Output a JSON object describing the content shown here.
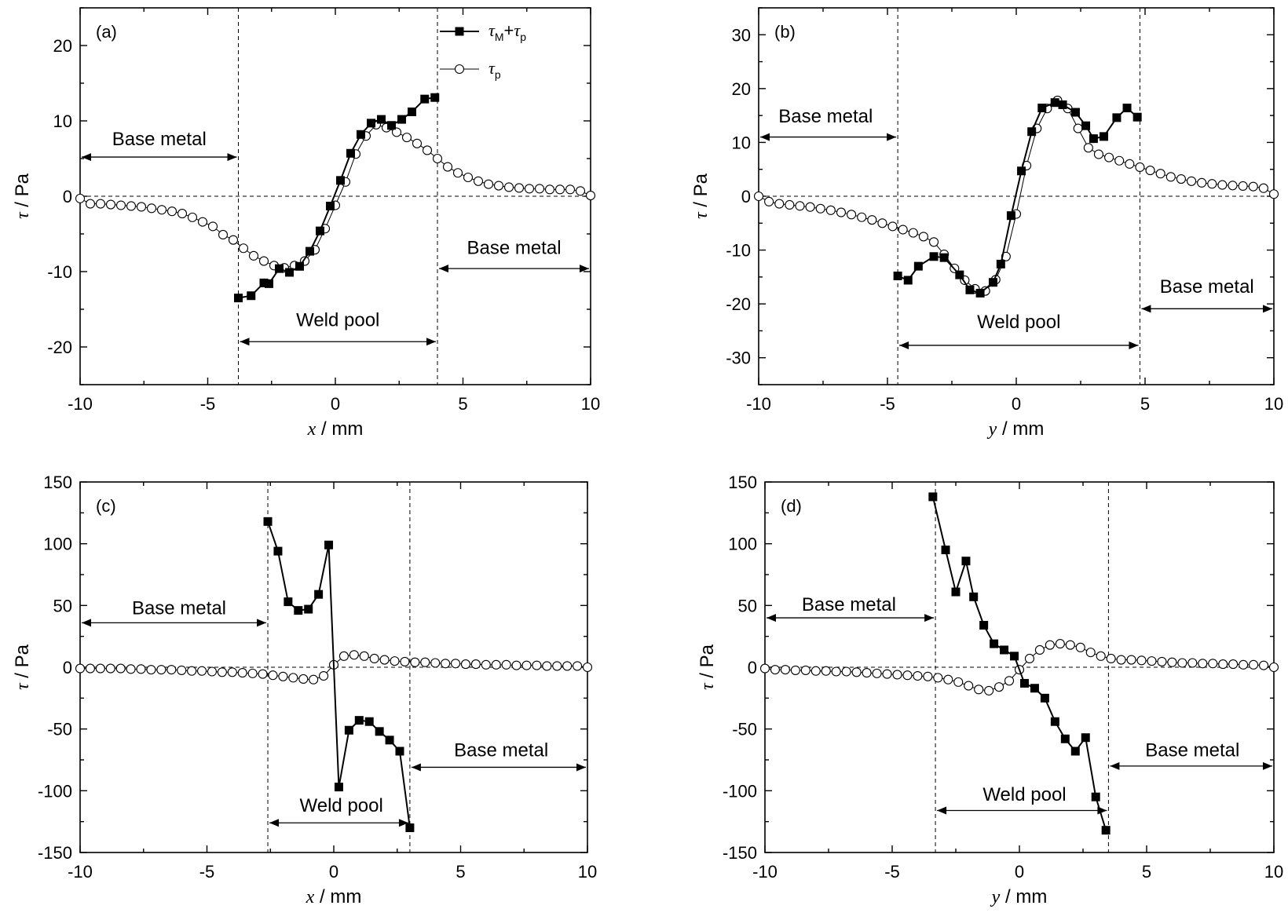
{
  "chart_data": [
    {
      "panel": "(a)",
      "type": "line",
      "xlabel_var": "x",
      "xlabel_unit": " / mm",
      "ylabel_var": "τ",
      "ylabel_unit": " / Pa",
      "xlim": [
        -10,
        10
      ],
      "ylim": [
        -25,
        25
      ],
      "xticks": [
        -10,
        -5,
        0,
        5,
        10
      ],
      "yticks": [
        -20,
        -10,
        0,
        10,
        20
      ],
      "boundaries": [
        -3.8,
        4.0
      ],
      "legend": {
        "total": {
          "a": "τ",
          "a_sub": "M",
          "plus": "+",
          "b": "τ",
          "b_sub": "p"
        },
        "p": {
          "a": "τ",
          "a_sub": "p"
        }
      },
      "annotations": [
        {
          "text": "Base metal",
          "arrow": [
            -10,
            -3.8
          ],
          "y": 5.2,
          "ty": 7.6,
          "tx": -6.9
        },
        {
          "text": "Base metal",
          "arrow": [
            4.0,
            10
          ],
          "y": -9.6,
          "ty": -6.8,
          "tx": 7.0
        },
        {
          "text": "Weld pool",
          "arrow": [
            -3.8,
            4.0
          ],
          "y": -19.3,
          "ty": -16.4,
          "tx": 0.1
        }
      ],
      "series": [
        {
          "name_ref": "total",
          "marker": "square",
          "x": [
            -3.8,
            -3.3,
            -2.8,
            -2.6,
            -2.2,
            -1.8,
            -1.4,
            -1.0,
            -0.6,
            -0.2,
            0.2,
            0.6,
            1.0,
            1.4,
            1.8,
            2.2,
            2.6,
            3.0,
            3.5,
            3.9
          ],
          "y": [
            -13.5,
            -13.2,
            -11.5,
            -11.6,
            -9.6,
            -10.1,
            -9.3,
            -7.3,
            -4.6,
            -1.3,
            2.1,
            5.7,
            8.2,
            9.7,
            10.2,
            9.4,
            10.2,
            11.2,
            12.9,
            13.1
          ]
        },
        {
          "name_ref": "p",
          "marker": "circle",
          "x": [
            -10.0,
            -9.6,
            -9.2,
            -8.8,
            -8.4,
            -8.0,
            -7.6,
            -7.2,
            -6.8,
            -6.4,
            -6.0,
            -5.6,
            -5.2,
            -4.8,
            -4.4,
            -4.0,
            -3.6,
            -3.2,
            -2.8,
            -2.4,
            -2.0,
            -1.6,
            -1.2,
            -0.8,
            -0.4,
            0.0,
            0.4,
            0.8,
            1.2,
            1.6,
            2.0,
            2.4,
            2.8,
            3.2,
            3.6,
            4.0,
            4.4,
            4.8,
            5.2,
            5.6,
            6.0,
            6.4,
            6.8,
            7.2,
            7.6,
            8.0,
            8.4,
            8.8,
            9.2,
            9.6,
            10.0
          ],
          "y": [
            -0.3,
            -1.0,
            -1.0,
            -1.1,
            -1.2,
            -1.3,
            -1.4,
            -1.6,
            -1.8,
            -2.0,
            -2.3,
            -2.8,
            -3.4,
            -4.0,
            -5.1,
            -5.8,
            -6.9,
            -7.9,
            -8.6,
            -9.2,
            -9.5,
            -9.2,
            -8.6,
            -7.1,
            -4.3,
            -1.2,
            1.9,
            5.6,
            8.0,
            9.5,
            9.1,
            8.5,
            7.8,
            7.0,
            6.1,
            5.0,
            3.9,
            3.1,
            2.5,
            2.0,
            1.6,
            1.4,
            1.2,
            1.1,
            1.0,
            1.0,
            0.9,
            0.9,
            0.9,
            0.7,
            0.1
          ]
        }
      ]
    },
    {
      "panel": "(b)",
      "type": "line",
      "xlabel_var": "y",
      "xlabel_unit": " / mm",
      "ylabel_var": "τ",
      "ylabel_unit": " / Pa",
      "xlim": [
        -10,
        10
      ],
      "ylim": [
        -35,
        35
      ],
      "xticks": [
        -10,
        -5,
        0,
        5,
        10
      ],
      "yticks": [
        -30,
        -20,
        -10,
        0,
        10,
        20,
        30
      ],
      "boundaries": [
        -4.6,
        4.8
      ],
      "annotations": [
        {
          "text": "Base metal",
          "arrow": [
            -10,
            -4.6
          ],
          "y": 11.0,
          "ty": 14.9,
          "tx": -7.4
        },
        {
          "text": "Base metal",
          "arrow": [
            4.8,
            10
          ],
          "y": -20.9,
          "ty": -16.8,
          "tx": 7.4
        },
        {
          "text": "Weld pool",
          "arrow": [
            -4.6,
            4.8
          ],
          "y": -27.7,
          "ty": -23.3,
          "tx": 0.1
        }
      ],
      "series": [
        {
          "name_ref": "total",
          "marker": "square",
          "x": [
            -4.6,
            -4.2,
            -3.8,
            -3.2,
            -2.8,
            -2.2,
            -1.8,
            -1.4,
            -0.9,
            -0.6,
            -0.2,
            0.2,
            0.6,
            1.0,
            1.5,
            1.8,
            2.3,
            2.7,
            3.0,
            3.4,
            3.9,
            4.3,
            4.7
          ],
          "y": [
            -14.8,
            -15.6,
            -13.0,
            -11.2,
            -11.4,
            -14.6,
            -17.4,
            -18.0,
            -16.0,
            -12.6,
            -3.6,
            4.7,
            12.0,
            16.4,
            17.4,
            17.0,
            15.6,
            13.1,
            10.7,
            11.1,
            14.6,
            16.4,
            14.7
          ]
        },
        {
          "name_ref": "p",
          "marker": "circle",
          "x": [
            -10.0,
            -9.6,
            -9.2,
            -8.8,
            -8.4,
            -8.0,
            -7.6,
            -7.2,
            -6.8,
            -6.4,
            -6.0,
            -5.6,
            -5.2,
            -4.8,
            -4.4,
            -4.0,
            -3.6,
            -3.2,
            -2.8,
            -2.4,
            -2.0,
            -1.6,
            -1.2,
            -0.8,
            -0.4,
            0.0,
            0.4,
            0.8,
            1.2,
            1.6,
            2.0,
            2.4,
            2.8,
            3.2,
            3.6,
            4.0,
            4.4,
            4.8,
            5.2,
            5.6,
            6.0,
            6.4,
            6.8,
            7.2,
            7.6,
            8.0,
            8.4,
            8.8,
            9.2,
            9.6,
            10.0
          ],
          "y": [
            0.0,
            -1.0,
            -1.4,
            -1.6,
            -1.8,
            -2.0,
            -2.3,
            -2.6,
            -3.0,
            -3.4,
            -3.9,
            -4.4,
            -5.0,
            -5.6,
            -6.2,
            -6.8,
            -7.5,
            -8.5,
            -10.8,
            -13.4,
            -15.6,
            -17.2,
            -17.6,
            -15.5,
            -11.2,
            -3.3,
            5.7,
            12.6,
            16.3,
            17.8,
            16.3,
            12.6,
            9.0,
            7.8,
            7.2,
            6.6,
            6.0,
            5.4,
            4.8,
            4.2,
            3.6,
            3.2,
            2.8,
            2.5,
            2.3,
            2.1,
            2.0,
            1.9,
            1.8,
            1.5,
            0.4
          ]
        }
      ]
    },
    {
      "panel": "(c)",
      "type": "line",
      "xlabel_var": "x",
      "xlabel_unit": " / mm",
      "ylabel_var": "τ",
      "ylabel_unit": " / Pa",
      "xlim": [
        -10,
        10
      ],
      "ylim": [
        -150,
        150
      ],
      "xticks": [
        -10,
        -5,
        0,
        5,
        10
      ],
      "yticks": [
        -150,
        -100,
        -50,
        0,
        50,
        100,
        150
      ],
      "boundaries": [
        -2.6,
        3.0
      ],
      "annotations": [
        {
          "text": "Base metal",
          "arrow": [
            -10,
            -2.6
          ],
          "y": 36,
          "ty": 48,
          "tx": -6.1
        },
        {
          "text": "Base metal",
          "arrow": [
            3.0,
            10
          ],
          "y": -81,
          "ty": -67,
          "tx": 6.6
        },
        {
          "text": "Weld pool",
          "arrow": [
            -2.6,
            3.0
          ],
          "y": -126,
          "ty": -112,
          "tx": 0.3
        }
      ],
      "series": [
        {
          "name_ref": "total",
          "marker": "square",
          "x": [
            -2.6,
            -2.2,
            -1.8,
            -1.4,
            -1.0,
            -0.6,
            -0.2,
            0.2,
            0.6,
            1.0,
            1.4,
            1.8,
            2.2,
            2.6,
            3.0
          ],
          "y": [
            118,
            94,
            53,
            46,
            47,
            59,
            99,
            -97,
            -51,
            -43,
            -44,
            -52,
            -59,
            -68,
            -130
          ]
        },
        {
          "name_ref": "p",
          "marker": "circle",
          "x": [
            -10.0,
            -9.6,
            -9.2,
            -8.8,
            -8.4,
            -8.0,
            -7.6,
            -7.2,
            -6.8,
            -6.4,
            -6.0,
            -5.6,
            -5.2,
            -4.8,
            -4.4,
            -4.0,
            -3.6,
            -3.2,
            -2.8,
            -2.4,
            -2.0,
            -1.6,
            -1.2,
            -0.8,
            -0.4,
            0.0,
            0.4,
            0.8,
            1.2,
            1.6,
            2.0,
            2.4,
            2.8,
            3.2,
            3.6,
            4.0,
            4.4,
            4.8,
            5.2,
            5.6,
            6.0,
            6.4,
            6.8,
            7.2,
            7.6,
            8.0,
            8.4,
            8.8,
            9.2,
            9.6,
            10.0
          ],
          "y": [
            -1,
            -1,
            -1,
            -1,
            -1,
            -1.5,
            -1.5,
            -2,
            -2,
            -2,
            -2.5,
            -3,
            -3,
            -3.5,
            -4,
            -4,
            -4.5,
            -5,
            -5.5,
            -6.5,
            -7.5,
            -8.5,
            -9.5,
            -10,
            -7,
            2,
            9,
            10,
            9,
            7,
            6,
            5,
            4.5,
            4,
            4,
            3.5,
            3,
            3,
            2.5,
            2.5,
            2,
            2,
            2,
            1.5,
            1.5,
            1.5,
            1,
            1,
            1,
            1,
            0
          ]
        }
      ]
    },
    {
      "panel": "(d)",
      "type": "line",
      "xlabel_var": "y",
      "xlabel_unit": " / mm",
      "ylabel_var": "τ",
      "ylabel_unit": " / Pa",
      "xlim": [
        -10,
        10
      ],
      "ylim": [
        -150,
        150
      ],
      "xticks": [
        -10,
        -5,
        0,
        5,
        10
      ],
      "yticks": [
        -150,
        -100,
        -50,
        0,
        50,
        100,
        150
      ],
      "boundaries": [
        -3.3,
        3.5
      ],
      "annotations": [
        {
          "text": "Base metal",
          "arrow": [
            -10,
            -3.3
          ],
          "y": 40,
          "ty": 51,
          "tx": -6.7
        },
        {
          "text": "Base metal",
          "arrow": [
            3.5,
            10
          ],
          "y": -80,
          "ty": -67,
          "tx": 6.8
        },
        {
          "text": "Weld pool",
          "arrow": [
            -3.3,
            3.5
          ],
          "y": -116,
          "ty": -103,
          "tx": 0.2
        }
      ],
      "series": [
        {
          "name_ref": "total",
          "marker": "square",
          "x": [
            -3.4,
            -2.9,
            -2.5,
            -2.1,
            -1.8,
            -1.4,
            -1.0,
            -0.6,
            -0.2,
            0.2,
            0.6,
            1.0,
            1.4,
            1.8,
            2.2,
            2.6,
            3.0,
            3.4
          ],
          "y": [
            138,
            95,
            61,
            86,
            57,
            34,
            19,
            14,
            9,
            -13,
            -17,
            -25,
            -44,
            -58,
            -68,
            -57,
            -105,
            -132
          ]
        },
        {
          "name_ref": "p",
          "marker": "circle",
          "x": [
            -10.0,
            -9.6,
            -9.2,
            -8.8,
            -8.4,
            -8.0,
            -7.6,
            -7.2,
            -6.8,
            -6.4,
            -6.0,
            -5.6,
            -5.2,
            -4.8,
            -4.4,
            -4.0,
            -3.6,
            -3.2,
            -2.8,
            -2.4,
            -2.0,
            -1.6,
            -1.2,
            -0.8,
            -0.4,
            0.0,
            0.4,
            0.8,
            1.2,
            1.6,
            2.0,
            2.4,
            2.8,
            3.2,
            3.6,
            4.0,
            4.4,
            4.8,
            5.2,
            5.6,
            6.0,
            6.4,
            6.8,
            7.2,
            7.6,
            8.0,
            8.4,
            8.8,
            9.2,
            9.6,
            10.0
          ],
          "y": [
            -1,
            -2,
            -2,
            -2.5,
            -2.5,
            -3,
            -3,
            -3.5,
            -3.5,
            -4,
            -4.5,
            -5,
            -5.5,
            -6,
            -6.5,
            -7,
            -7.5,
            -8.5,
            -10,
            -12,
            -15,
            -18,
            -19,
            -16,
            -11,
            -2,
            7,
            14,
            18,
            19,
            18,
            16,
            12,
            9,
            7,
            6,
            6,
            5.5,
            5,
            4.5,
            4,
            3.5,
            3.5,
            3,
            3,
            2.5,
            2.5,
            2,
            2,
            1.5,
            0
          ]
        }
      ]
    }
  ]
}
